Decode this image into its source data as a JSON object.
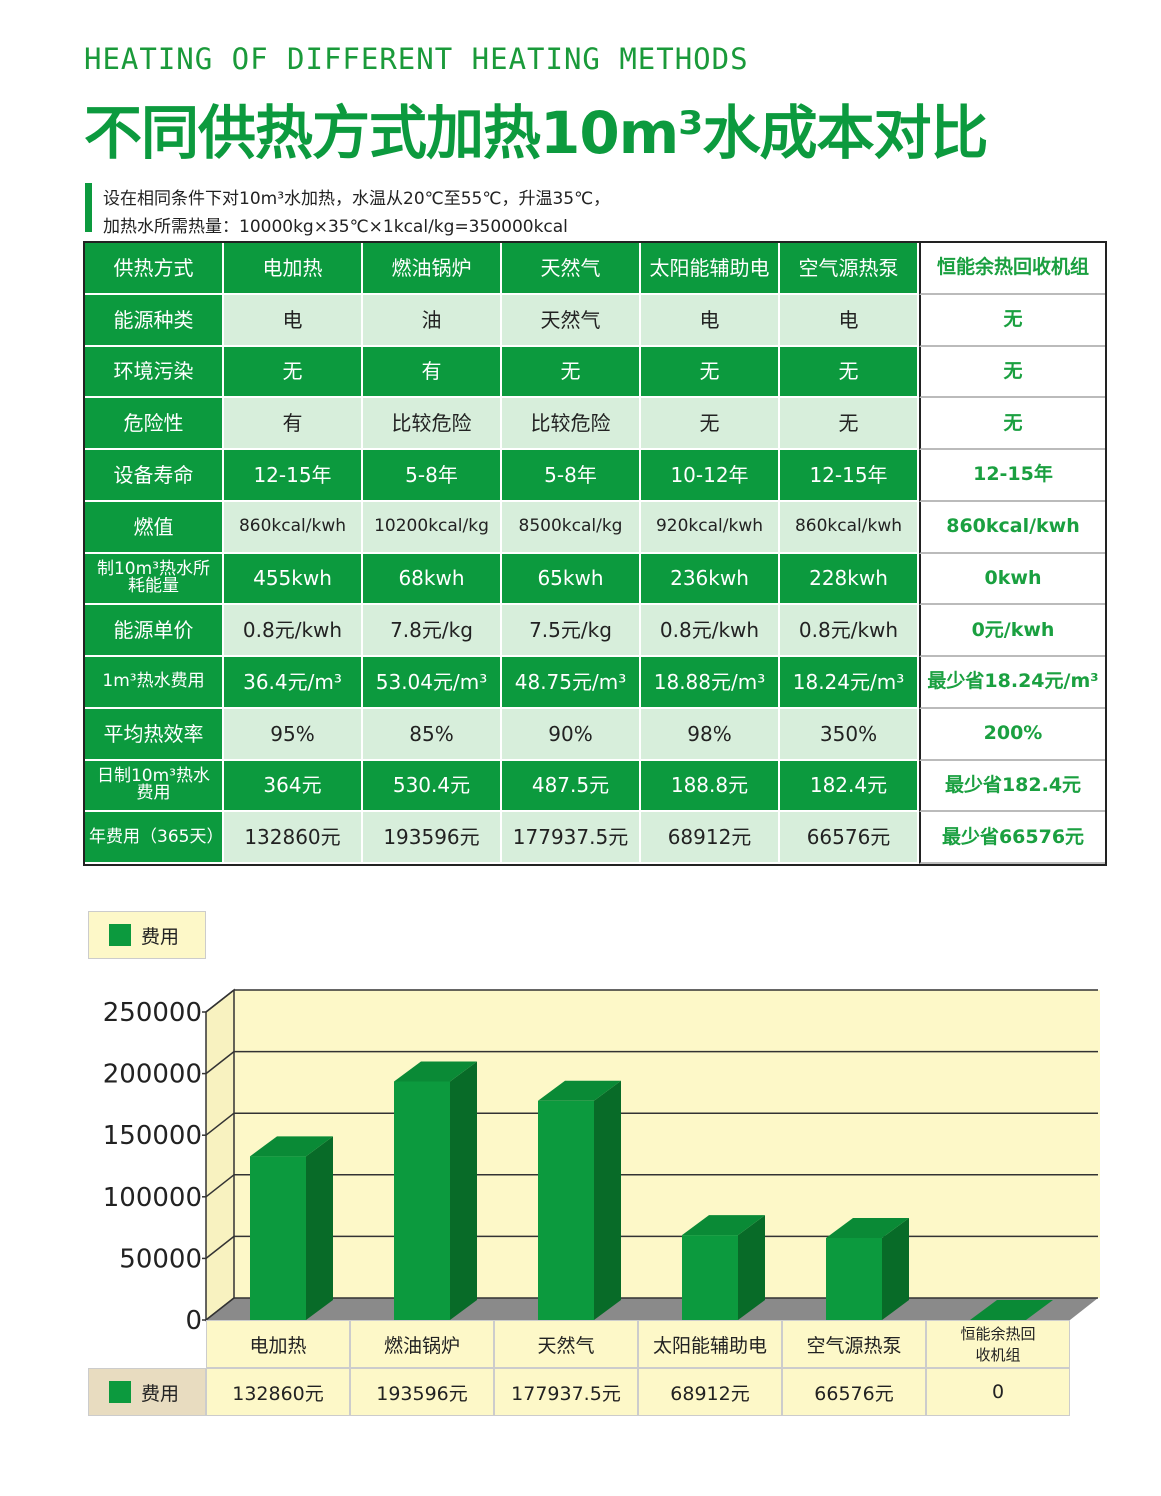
{
  "header": {
    "subtitle": "HEATING OF DIFFERENT HEATING METHODS",
    "title": "不同供热方式加热10m³水成本对比",
    "notes": [
      "设在相同条件下对10m³水加热，水温从20℃至55℃，升温35℃，",
      "加热水所需热量：10000kg×35℃×1kcal/kg=350000kcal"
    ]
  },
  "table": {
    "header": [
      "供热方式",
      "电加热",
      "燃油锅炉",
      "天然气",
      "太阳能辅助电",
      "空气源热泵",
      "恒能余热回收机组"
    ],
    "rows": [
      [
        "能源种类",
        "电",
        "油",
        "天然气",
        "电",
        "电",
        "无"
      ],
      [
        "环境污染",
        "无",
        "有",
        "无",
        "无",
        "无",
        "无"
      ],
      [
        "危险性",
        "有",
        "比较危险",
        "比较危险",
        "无",
        "无",
        "无"
      ],
      [
        "设备寿命",
        "12-15年",
        "5-8年",
        "5-8年",
        "10-12年",
        "12-15年",
        "12-15年"
      ],
      [
        "燃值",
        "860kcal/kwh",
        "10200kcal/kg",
        "8500kcal/kg",
        "920kcal/kwh",
        "860kcal/kwh",
        "860kcal/kwh"
      ],
      [
        "制10m³热水所耗能量",
        "455kwh",
        "68kwh",
        "65kwh",
        "236kwh",
        "228kwh",
        "0kwh"
      ],
      [
        "能源单价",
        "0.8元/kwh",
        "7.8元/kg",
        "7.5元/kg",
        "0.8元/kwh",
        "0.8元/kwh",
        "0元/kwh"
      ],
      [
        "1m³热水费用",
        "36.4元/m³",
        "53.04元/m³",
        "48.75元/m³",
        "18.88元/m³",
        "18.24元/m³",
        "最少省18.24元/m³"
      ],
      [
        "平均热效率",
        "95%",
        "85%",
        "90%",
        "98%",
        "350%",
        "200%"
      ],
      [
        "日制10m³热水费用",
        "364元",
        "530.4元",
        "487.5元",
        "188.8元",
        "182.4元",
        "最少省182.4元"
      ],
      [
        "年费用（365天）",
        "132860元",
        "193596元",
        "177937.5元",
        "68912元",
        "66576元",
        "最少省66576元"
      ]
    ]
  },
  "chart_data": {
    "type": "bar",
    "categories": [
      "电加热",
      "燃油锅炉",
      "天然气",
      "太阳能辅助电",
      "空气源热泵",
      "恒能余热回收机组"
    ],
    "series": [
      {
        "name": "费用",
        "color": "#0c9a3e",
        "values": [
          132860,
          193596,
          177937.5,
          68912,
          66576,
          0
        ],
        "value_labels": [
          "132860元",
          "193596元",
          "177937.5元",
          "68912元",
          "66576元",
          "0"
        ]
      }
    ],
    "ylim": [
      0,
      250000
    ],
    "yticks": [
      0,
      50000,
      100000,
      150000,
      200000,
      250000
    ],
    "grid": true
  }
}
